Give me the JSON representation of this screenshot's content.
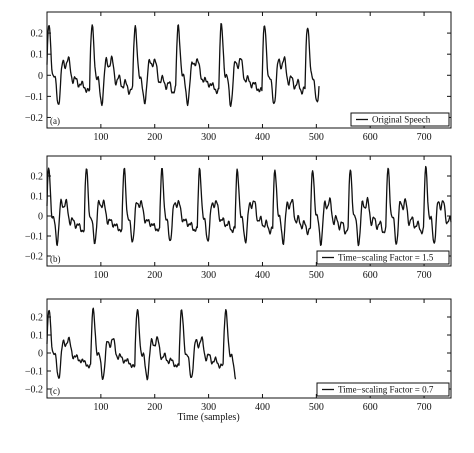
{
  "chart_data": [
    {
      "type": "line",
      "panel_label": "(a)",
      "legend": "Original Speech",
      "legend_position": "bottom-right",
      "xlim": [
        0,
        750
      ],
      "ylim": [
        -0.25,
        0.3
      ],
      "x_ticks": [
        100,
        200,
        300,
        400,
        500,
        600,
        700
      ],
      "y_ticks": [
        0.2,
        0.1,
        0,
        -0.1,
        -0.2
      ],
      "xlabel": "",
      "grid": false,
      "x_end": 505,
      "period": 80,
      "phase": 0
    },
    {
      "type": "line",
      "panel_label": "(b)",
      "legend": "Time−scaling Factor = 1.5",
      "legend_position": "bottom-right",
      "xlim": [
        0,
        750
      ],
      "ylim": [
        -0.25,
        0.3
      ],
      "x_ticks": [
        100,
        200,
        300,
        400,
        500,
        600,
        700
      ],
      "y_ticks": [
        0.2,
        0.1,
        0,
        -0.1,
        -0.2
      ],
      "xlabel": "",
      "grid": false,
      "x_end": 750,
      "period": 70,
      "phase": 0
    },
    {
      "type": "line",
      "panel_label": "(c)",
      "legend": "Time−scaling Factor = 0.7",
      "legend_position": "bottom-right",
      "xlim": [
        0,
        750
      ],
      "ylim": [
        -0.25,
        0.3
      ],
      "x_ticks": [
        100,
        200,
        300,
        400,
        500,
        600,
        700
      ],
      "y_ticks": [
        0.2,
        0.1,
        0,
        -0.1,
        -0.2
      ],
      "xlabel": "Time (samples)",
      "grid": false,
      "x_end": 350,
      "period": 82,
      "phase": 0
    }
  ]
}
